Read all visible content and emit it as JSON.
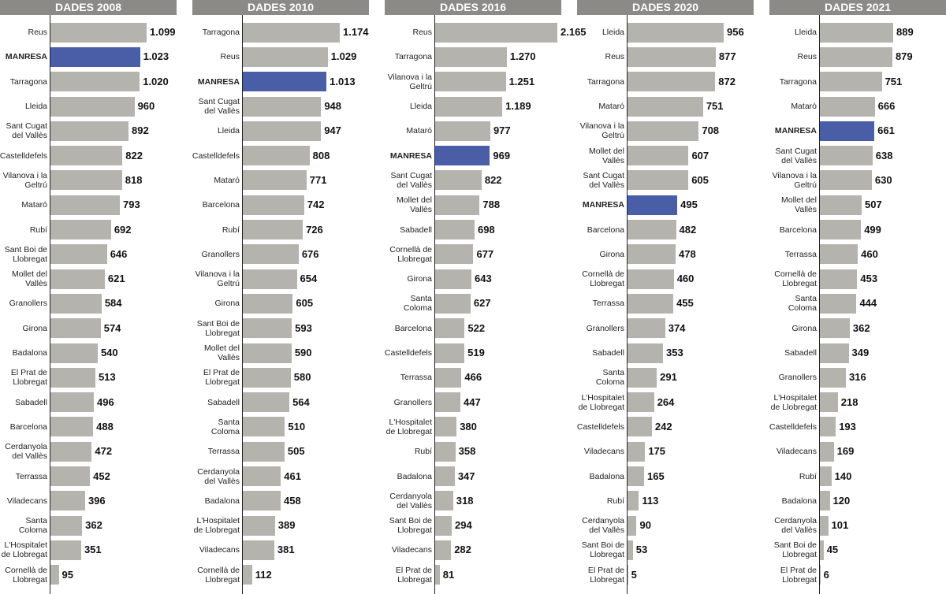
{
  "chart_data": [
    {
      "type": "bar",
      "title": "DADES 2008",
      "categories": [
        "Reus",
        "MANRESA",
        "Tarragona",
        "Lleida",
        "Sant Cugat del Vallès",
        "Castelldefels",
        "Vilanova i la Geltrú",
        "Mataró",
        "Rubí",
        "Sant Boi de Llobregat",
        "Mollet del Vallès",
        "Granollers",
        "Girona",
        "Badalona",
        "El Prat de Llobregat",
        "Sabadell",
        "Barcelona",
        "Cerdanyola del Vallès",
        "Terrassa",
        "Viladecans",
        "Santa Coloma",
        "L'Hospitalet de Llobregat",
        "Cornellà de Llobregat"
      ],
      "values": [
        1099,
        1023,
        1020,
        960,
        892,
        822,
        818,
        793,
        692,
        646,
        621,
        584,
        574,
        540,
        513,
        496,
        488,
        472,
        452,
        396,
        362,
        351,
        95
      ],
      "value_labels": [
        "1.099",
        "1.023",
        "1.020",
        "960",
        "892",
        "822",
        "818",
        "793",
        "692",
        "646",
        "621",
        "584",
        "574",
        "540",
        "513",
        "496",
        "488",
        "472",
        "452",
        "396",
        "362",
        "351",
        "95"
      ],
      "colors": [
        "#b5b3ae",
        "#4a5ea8",
        "#b5b3ae",
        "#b5b3ae",
        "#b5b3ae",
        "#b5b3ae",
        "#b5b3ae",
        "#b5b3ae",
        "#b5b3ae",
        "#b5b3ae",
        "#b5b3ae",
        "#b5b3ae",
        "#b5b3ae",
        "#b5b3ae",
        "#b5b3ae",
        "#b5b3ae",
        "#b5b3ae",
        "#b5b3ae",
        "#b5b3ae",
        "#b5b3ae",
        "#b5b3ae",
        "#b5b3ae",
        "#b5b3ae"
      ]
    },
    {
      "type": "bar",
      "title": "DADES 2010",
      "categories": [
        "Tarragona",
        "Reus",
        "MANRESA",
        "Sant Cugat del Vallès",
        "Lleida",
        "Castelldefels",
        "Mataró",
        "Barcelona",
        "Rubí",
        "Granollers",
        "Vilanova i la Geltrú",
        "Girona",
        "Sant Boi de Llobregat",
        "Mollet del Vallès",
        "El Prat de Llobregat",
        "Sabadell",
        "Santa Coloma",
        "Terrassa",
        "Cerdanyola del Vallès",
        "Badalona",
        "L'Hospitalet de Llobregat",
        "Viladecans",
        "Cornellà de Llobregat"
      ],
      "values": [
        1174,
        1029,
        1013,
        948,
        947,
        808,
        771,
        742,
        726,
        676,
        654,
        605,
        593,
        590,
        580,
        564,
        510,
        505,
        461,
        458,
        389,
        381,
        112
      ],
      "value_labels": [
        "1.174",
        "1.029",
        "1.013",
        "948",
        "947",
        "808",
        "771",
        "742",
        "726",
        "676",
        "654",
        "605",
        "593",
        "590",
        "580",
        "564",
        "510",
        "505",
        "461",
        "458",
        "389",
        "381",
        "112"
      ],
      "colors": [
        "#b5b3ae",
        "#b5b3ae",
        "#4a5ea8",
        "#b5b3ae",
        "#b5b3ae",
        "#b5b3ae",
        "#b5b3ae",
        "#b5b3ae",
        "#b5b3ae",
        "#b5b3ae",
        "#b5b3ae",
        "#b5b3ae",
        "#b5b3ae",
        "#b5b3ae",
        "#b5b3ae",
        "#b5b3ae",
        "#b5b3ae",
        "#b5b3ae",
        "#b5b3ae",
        "#b5b3ae",
        "#b5b3ae",
        "#b5b3ae",
        "#b5b3ae"
      ]
    },
    {
      "type": "bar",
      "title": "DADES 2016",
      "categories": [
        "Reus",
        "Tarragona",
        "Vilanova i la Geltrú",
        "Lleida",
        "Mataró",
        "MANRESA",
        "Sant Cugat del Vallès",
        "Mollet del Vallès",
        "Sabadell",
        "Cornellà de Llobregat",
        "Girona",
        "Santa Coloma",
        "Barcelona",
        "Castelldefels",
        "Terrassa",
        "Granollers",
        "L'Hospitalet de Llobregat",
        "Rubí",
        "Badalona",
        "Cerdanyola del Vallès",
        "Sant Boi de Llobregat",
        "Viladecans",
        "El Prat de Llobregat"
      ],
      "values": [
        2165,
        1270,
        1251,
        1189,
        977,
        969,
        822,
        788,
        698,
        677,
        643,
        627,
        522,
        519,
        466,
        447,
        380,
        358,
        347,
        318,
        294,
        282,
        81
      ],
      "value_labels": [
        "2.165",
        "1.270",
        "1.251",
        "1.189",
        "977",
        "969",
        "822",
        "788",
        "698",
        "677",
        "643",
        "627",
        "522",
        "519",
        "466",
        "447",
        "380",
        "358",
        "347",
        "318",
        "294",
        "282",
        "81"
      ],
      "colors": [
        "#b5b3ae",
        "#b5b3ae",
        "#b5b3ae",
        "#b5b3ae",
        "#b5b3ae",
        "#4a5ea8",
        "#b5b3ae",
        "#b5b3ae",
        "#b5b3ae",
        "#b5b3ae",
        "#b5b3ae",
        "#b5b3ae",
        "#b5b3ae",
        "#b5b3ae",
        "#b5b3ae",
        "#b5b3ae",
        "#b5b3ae",
        "#b5b3ae",
        "#b5b3ae",
        "#b5b3ae",
        "#b5b3ae",
        "#b5b3ae",
        "#b5b3ae"
      ]
    },
    {
      "type": "bar",
      "title": "DADES 2020",
      "categories": [
        "Lleida",
        "Reus",
        "Tarragona",
        "Mataró",
        "Vilanova i la Geltrú",
        "Mollet del Vallès",
        "Sant Cugat del Vallès",
        "MANRESA",
        "Barcelona",
        "Girona",
        "Cornellà de Llobregat",
        "Terrassa",
        "Granollers",
        "Sabadell",
        "Santa Coloma",
        "L'Hospitalet de Llobregat",
        "Castelldefels",
        "Viladecans",
        "Badalona",
        "Rubí",
        "Cerdanyola del Vallès",
        "Sant Boi de Llobregat",
        "El Prat de Llobregat"
      ],
      "values": [
        956,
        877,
        872,
        751,
        708,
        607,
        605,
        495,
        482,
        478,
        460,
        455,
        374,
        353,
        291,
        264,
        242,
        175,
        165,
        113,
        90,
        53,
        5
      ],
      "value_labels": [
        "956",
        "877",
        "872",
        "751",
        "708",
        "607",
        "605",
        "495",
        "482",
        "478",
        "460",
        "455",
        "374",
        "353",
        "291",
        "264",
        "242",
        "175",
        "165",
        "113",
        "90",
        "53",
        "5"
      ],
      "colors": [
        "#b5b3ae",
        "#b5b3ae",
        "#b5b3ae",
        "#b5b3ae",
        "#b5b3ae",
        "#b5b3ae",
        "#b5b3ae",
        "#4a5ea8",
        "#b5b3ae",
        "#b5b3ae",
        "#b5b3ae",
        "#b5b3ae",
        "#b5b3ae",
        "#b5b3ae",
        "#b5b3ae",
        "#b5b3ae",
        "#b5b3ae",
        "#b5b3ae",
        "#b5b3ae",
        "#b5b3ae",
        "#b5b3ae",
        "#b5b3ae",
        "#b5b3ae"
      ]
    },
    {
      "type": "bar",
      "title": "DADES 2021",
      "categories": [
        "Lleida",
        "Reus",
        "Tarragona",
        "Mataró",
        "MANRESA",
        "Sant Cugat del Vallès",
        "Vilanova i la Geltrú",
        "Mollet del Vallès",
        "Barcelona",
        "Terrassa",
        "Cornellà de Llobregat",
        "Santa Coloma",
        "Girona",
        "Sabadell",
        "Granollers",
        "L'Hospitalet de Llobregat",
        "Castelldefels",
        "Viladecans",
        "Rubí",
        "Badalona",
        "Cerdanyola del Vallès",
        "Sant Boi de Llobregat",
        "El Prat de Llobregat"
      ],
      "values": [
        889,
        879,
        751,
        666,
        661,
        638,
        630,
        507,
        499,
        460,
        453,
        444,
        362,
        349,
        316,
        218,
        193,
        169,
        140,
        120,
        101,
        45,
        6
      ],
      "value_labels": [
        "889",
        "879",
        "751",
        "666",
        "661",
        "638",
        "630",
        "507",
        "499",
        "460",
        "453",
        "444",
        "362",
        "349",
        "316",
        "218",
        "193",
        "169",
        "140",
        "120",
        "101",
        "45",
        "6"
      ],
      "colors": [
        "#b5b3ae",
        "#b5b3ae",
        "#b5b3ae",
        "#b5b3ae",
        "#4a5ea8",
        "#b5b3ae",
        "#b5b3ae",
        "#b5b3ae",
        "#b5b3ae",
        "#b5b3ae",
        "#b5b3ae",
        "#b5b3ae",
        "#b5b3ae",
        "#b5b3ae",
        "#b5b3ae",
        "#b5b3ae",
        "#b5b3ae",
        "#b5b3ae",
        "#b5b3ae",
        "#b5b3ae",
        "#b5b3ae",
        "#b5b3ae",
        "#b5b3ae"
      ]
    }
  ]
}
